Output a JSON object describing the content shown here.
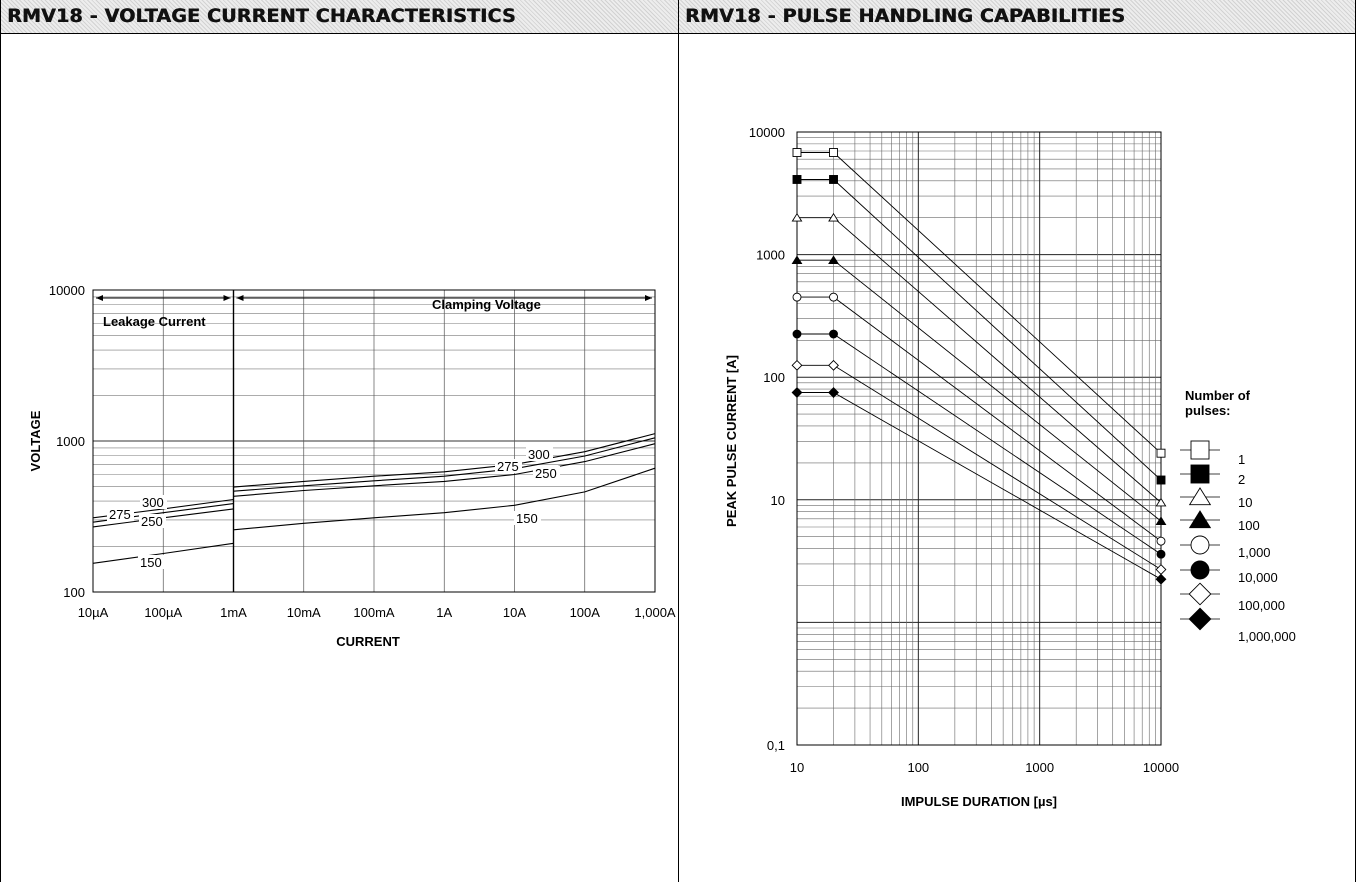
{
  "left_panel": {
    "header": "RMV18 - VOLTAGE CURRENT CHARACTERISTICS",
    "chart_data": {
      "type": "line",
      "xlabel": "CURRENT",
      "ylabel": "VOLTAGE",
      "x_scale": "log",
      "y_scale": "log",
      "x_tick_labels": [
        "10µA",
        "100µA",
        "1mA",
        "10mA",
        "100mA",
        "1A",
        "10A",
        "100A",
        "1,000A"
      ],
      "x_ticks_amps": [
        1e-05,
        0.0001,
        0.001,
        0.01,
        0.1,
        1,
        10,
        100,
        1000
      ],
      "xlim": [
        1e-05,
        1000
      ],
      "ylim": [
        100,
        10000
      ],
      "y_tick_labels": [
        "100",
        "1000",
        "10000"
      ],
      "y_ticks": [
        100,
        1000,
        10000
      ],
      "region_labels": [
        "Leakage Current",
        "Clamping Voltage"
      ],
      "series": [
        {
          "name": "300",
          "leakage_x": [
            1e-05,
            0.0001,
            0.001
          ],
          "leakage_y": [
            310,
            355,
            410
          ],
          "clamp_x": [
            0.001,
            0.01,
            0.1,
            1,
            10,
            100,
            1000
          ],
          "clamp_y": [
            495,
            540,
            585,
            625,
            700,
            850,
            1120
          ]
        },
        {
          "name": "275",
          "leakage_x": [
            1e-05,
            0.0001,
            0.001
          ],
          "leakage_y": [
            290,
            335,
            385
          ],
          "clamp_x": [
            0.001,
            0.01,
            0.1,
            1,
            10,
            100,
            1000
          ],
          "clamp_y": [
            465,
            505,
            545,
            585,
            655,
            795,
            1050
          ]
        },
        {
          "name": "250",
          "leakage_x": [
            1e-05,
            0.0001,
            0.001
          ],
          "leakage_y": [
            270,
            310,
            355
          ],
          "clamp_x": [
            0.001,
            0.01,
            0.1,
            1,
            10,
            100,
            1000
          ],
          "clamp_y": [
            430,
            470,
            505,
            540,
            600,
            730,
            960
          ]
        },
        {
          "name": "150",
          "leakage_x": [
            1e-05,
            0.0001,
            0.001
          ],
          "leakage_y": [
            155,
            180,
            210
          ],
          "clamp_x": [
            0.001,
            0.01,
            0.1,
            1,
            10,
            100,
            1000
          ],
          "clamp_y": [
            258,
            285,
            310,
            335,
            375,
            460,
            660
          ]
        }
      ]
    }
  },
  "right_panel": {
    "header": "RMV18 - PULSE HANDLING CAPABILITIES",
    "chart_data": {
      "type": "line",
      "xlabel": "IMPULSE DURATION [µs]",
      "ylabel": "PEAK PULSE CURRENT [A]",
      "x_scale": "log",
      "y_scale": "log",
      "xlim": [
        10,
        10000
      ],
      "ylim": [
        0.1,
        10000
      ],
      "x_tick_labels": [
        "10",
        "100",
        "1000",
        "10000"
      ],
      "x_ticks": [
        10,
        100,
        1000,
        10000
      ],
      "y_tick_labels": [
        "0,1",
        "10",
        "100",
        "1000",
        "10000"
      ],
      "y_ticks": [
        0.1,
        10,
        100,
        1000,
        10000
      ],
      "legend_title": "Number of pulses:",
      "legend_placement": "right",
      "series": [
        {
          "name": "1",
          "marker": "square-open",
          "x": [
            10,
            20,
            10000
          ],
          "y": [
            6800,
            6800,
            24
          ]
        },
        {
          "name": "2",
          "marker": "square-filled",
          "x": [
            10,
            20,
            10000
          ],
          "y": [
            4100,
            4100,
            14.5
          ]
        },
        {
          "name": "10",
          "marker": "triangle-open",
          "x": [
            10,
            20,
            10000
          ],
          "y": [
            2000,
            2000,
            9.5
          ]
        },
        {
          "name": "100",
          "marker": "triangle-filled",
          "x": [
            10,
            20,
            10000
          ],
          "y": [
            900,
            900,
            6.7
          ]
        },
        {
          "name": "1,000",
          "marker": "circle-open",
          "x": [
            10,
            20,
            10000
          ],
          "y": [
            450,
            450,
            4.6
          ]
        },
        {
          "name": "10,000",
          "marker": "circle-filled",
          "x": [
            10,
            20,
            10000
          ],
          "y": [
            225,
            225,
            3.6
          ]
        },
        {
          "name": "100,000",
          "marker": "diamond-open",
          "x": [
            10,
            20,
            10000
          ],
          "y": [
            125,
            125,
            2.7
          ]
        },
        {
          "name": "1,000,000",
          "marker": "diamond-filled",
          "x": [
            10,
            20,
            10000
          ],
          "y": [
            75,
            75,
            2.25
          ]
        }
      ]
    }
  }
}
